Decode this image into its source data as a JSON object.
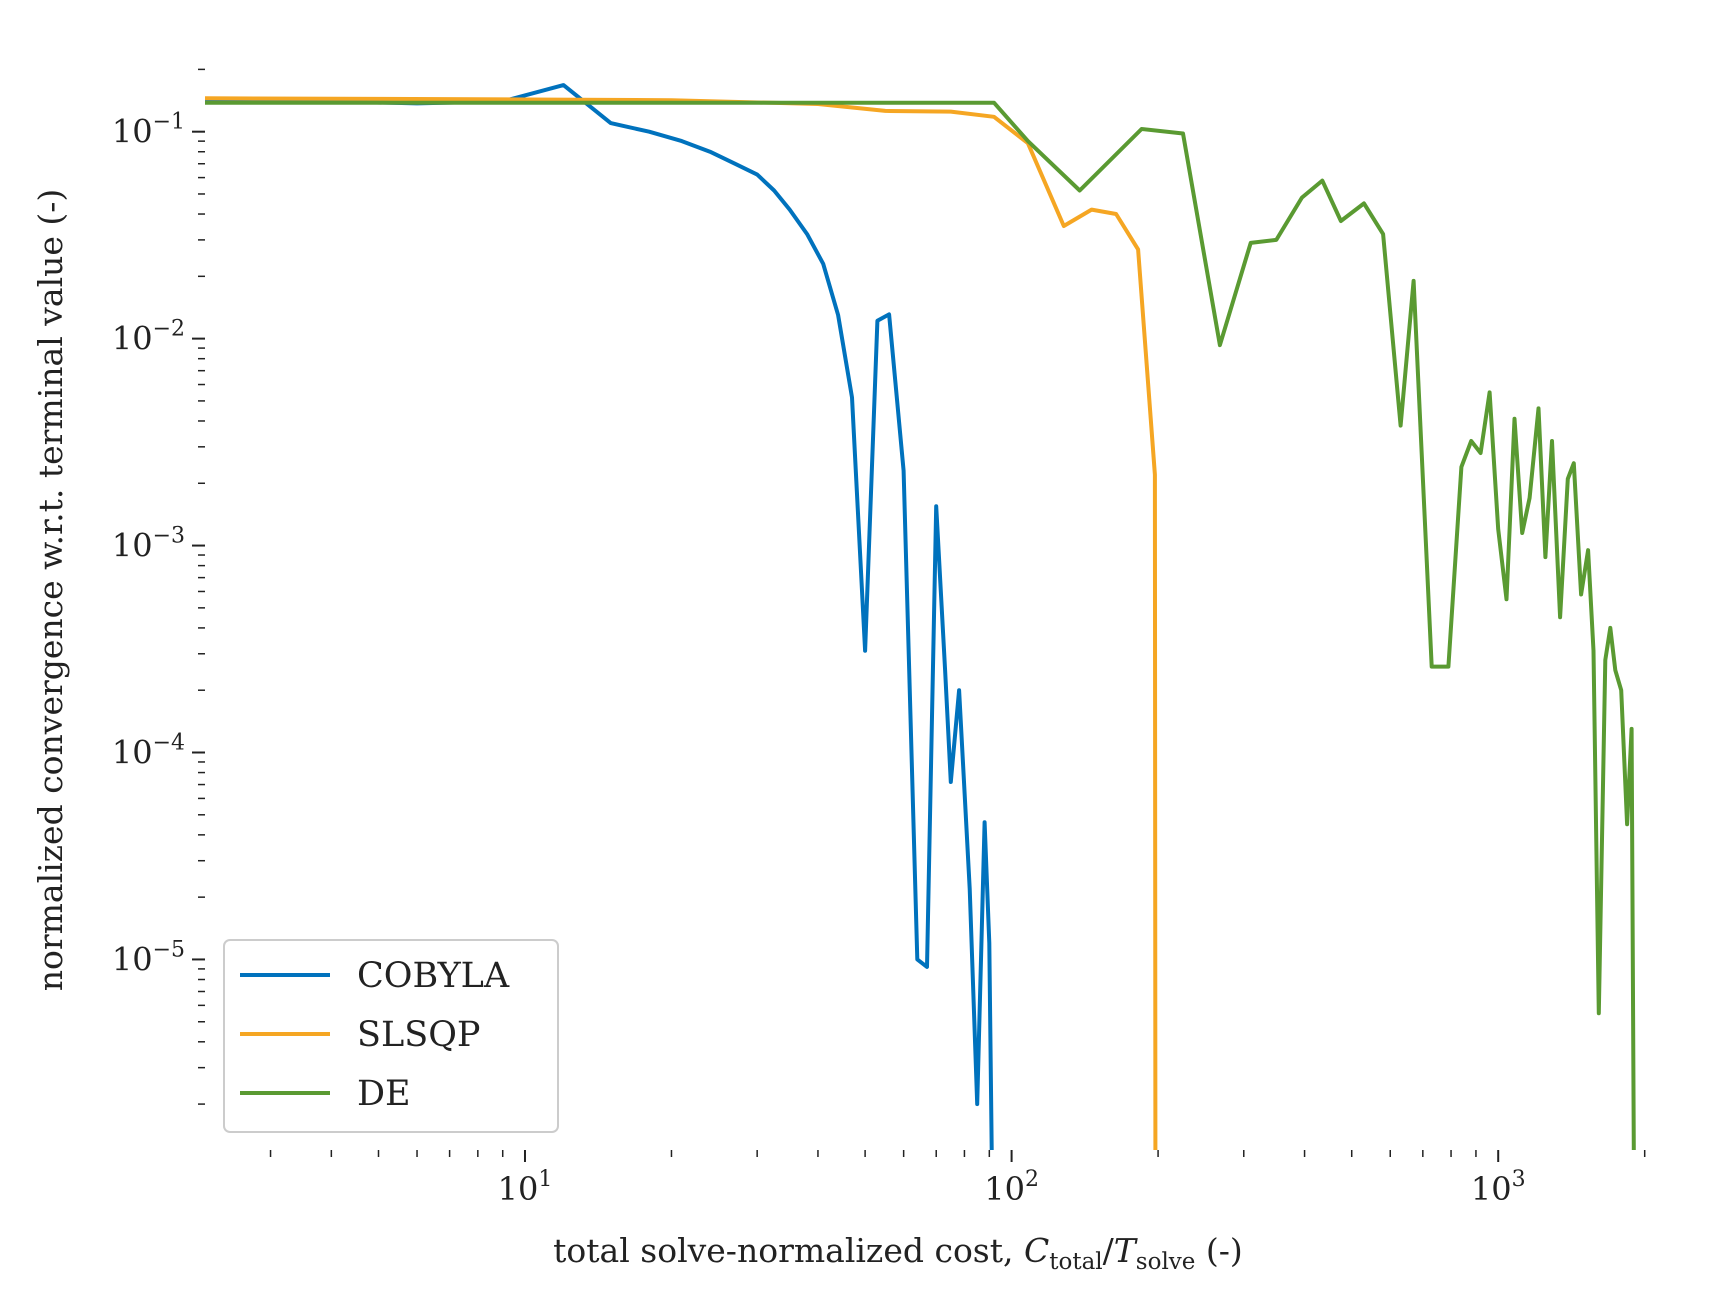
{
  "chart_data": {
    "type": "line",
    "xlabel_parts": {
      "prefix": "total solve-normalized cost, ",
      "C": "C",
      "C_sub": "total",
      "slash": "/",
      "T": "T",
      "T_sub": "solve",
      "suffix": " (-)"
    },
    "ylabel": "normalized convergence w.r.t. terminal value (-)",
    "xscale": "log",
    "yscale": "log",
    "xlim": [
      2.2,
      2100
    ],
    "ylim": [
      1.2e-06,
      0.21
    ],
    "x_ticks": [
      {
        "value": 10,
        "base": "10",
        "exp": "1"
      },
      {
        "value": 100,
        "base": "10",
        "exp": "2"
      },
      {
        "value": 1000,
        "base": "10",
        "exp": "3"
      }
    ],
    "y_ticks": [
      {
        "value": 0.1,
        "base": "10",
        "exp": "−1"
      },
      {
        "value": 0.01,
        "base": "10",
        "exp": "−2"
      },
      {
        "value": 0.001,
        "base": "10",
        "exp": "−3"
      },
      {
        "value": 0.0001,
        "base": "10",
        "exp": "−4"
      },
      {
        "value": 1e-05,
        "base": "10",
        "exp": "−5"
      }
    ],
    "legend": {
      "placement": "lower-left"
    },
    "series": [
      {
        "name": "COBYLA",
        "color": "#0072bd",
        "x": [
          2.2,
          4,
          6,
          9,
          12,
          15,
          18,
          21,
          24,
          27,
          30,
          32.5,
          35,
          38,
          41,
          44,
          47,
          50,
          53,
          56,
          60,
          64,
          67,
          70,
          73,
          75,
          78,
          82,
          85,
          88,
          90,
          91
        ],
        "y": [
          0.14,
          0.14,
          0.137,
          0.14,
          0.168,
          0.11,
          0.1,
          0.09,
          0.08,
          0.07,
          0.062,
          0.052,
          0.042,
          0.032,
          0.023,
          0.013,
          0.0052,
          0.00031,
          0.0122,
          0.0131,
          0.0023,
          1e-05,
          9.2e-06,
          0.00155,
          0.00025,
          7.2e-05,
          0.0002,
          2.2e-05,
          2e-06,
          4.6e-05,
          1.2e-05,
          1.2e-06
        ]
      },
      {
        "name": "SLSQP",
        "color": "#f5a623",
        "x": [
          2.2,
          5,
          10,
          20,
          40,
          55,
          75,
          92,
          108,
          128,
          146,
          164,
          182,
          197,
          197.5
        ],
        "y": [
          0.145,
          0.144,
          0.143,
          0.142,
          0.136,
          0.126,
          0.125,
          0.118,
          0.088,
          0.035,
          0.042,
          0.04,
          0.027,
          0.0022,
          1.2e-06
        ]
      },
      {
        "name": "DE",
        "color": "#5a9a32",
        "x": [
          2.2,
          10,
          40,
          92,
          108,
          138,
          185,
          225,
          268,
          310,
          350,
          395,
          435,
          475,
          530,
          580,
          630,
          670,
          730,
          790,
          840,
          880,
          920,
          960,
          1000,
          1040,
          1080,
          1120,
          1160,
          1210,
          1250,
          1290,
          1340,
          1390,
          1430,
          1480,
          1530,
          1570,
          1610,
          1660,
          1700,
          1740,
          1790,
          1840,
          1880,
          1900
        ],
        "y": [
          0.138,
          0.138,
          0.138,
          0.138,
          0.09,
          0.052,
          0.103,
          0.098,
          0.0093,
          0.029,
          0.03,
          0.048,
          0.058,
          0.037,
          0.045,
          0.032,
          0.0038,
          0.019,
          0.00026,
          0.00026,
          0.0024,
          0.0032,
          0.0028,
          0.0055,
          0.0012,
          0.00055,
          0.0041,
          0.00115,
          0.0017,
          0.0046,
          0.00088,
          0.0032,
          0.00045,
          0.0021,
          0.0025,
          0.00058,
          0.00095,
          0.00031,
          5.5e-06,
          0.00028,
          0.0004,
          0.00025,
          0.0002,
          4.5e-05,
          0.00013,
          1.2e-06
        ]
      }
    ]
  }
}
